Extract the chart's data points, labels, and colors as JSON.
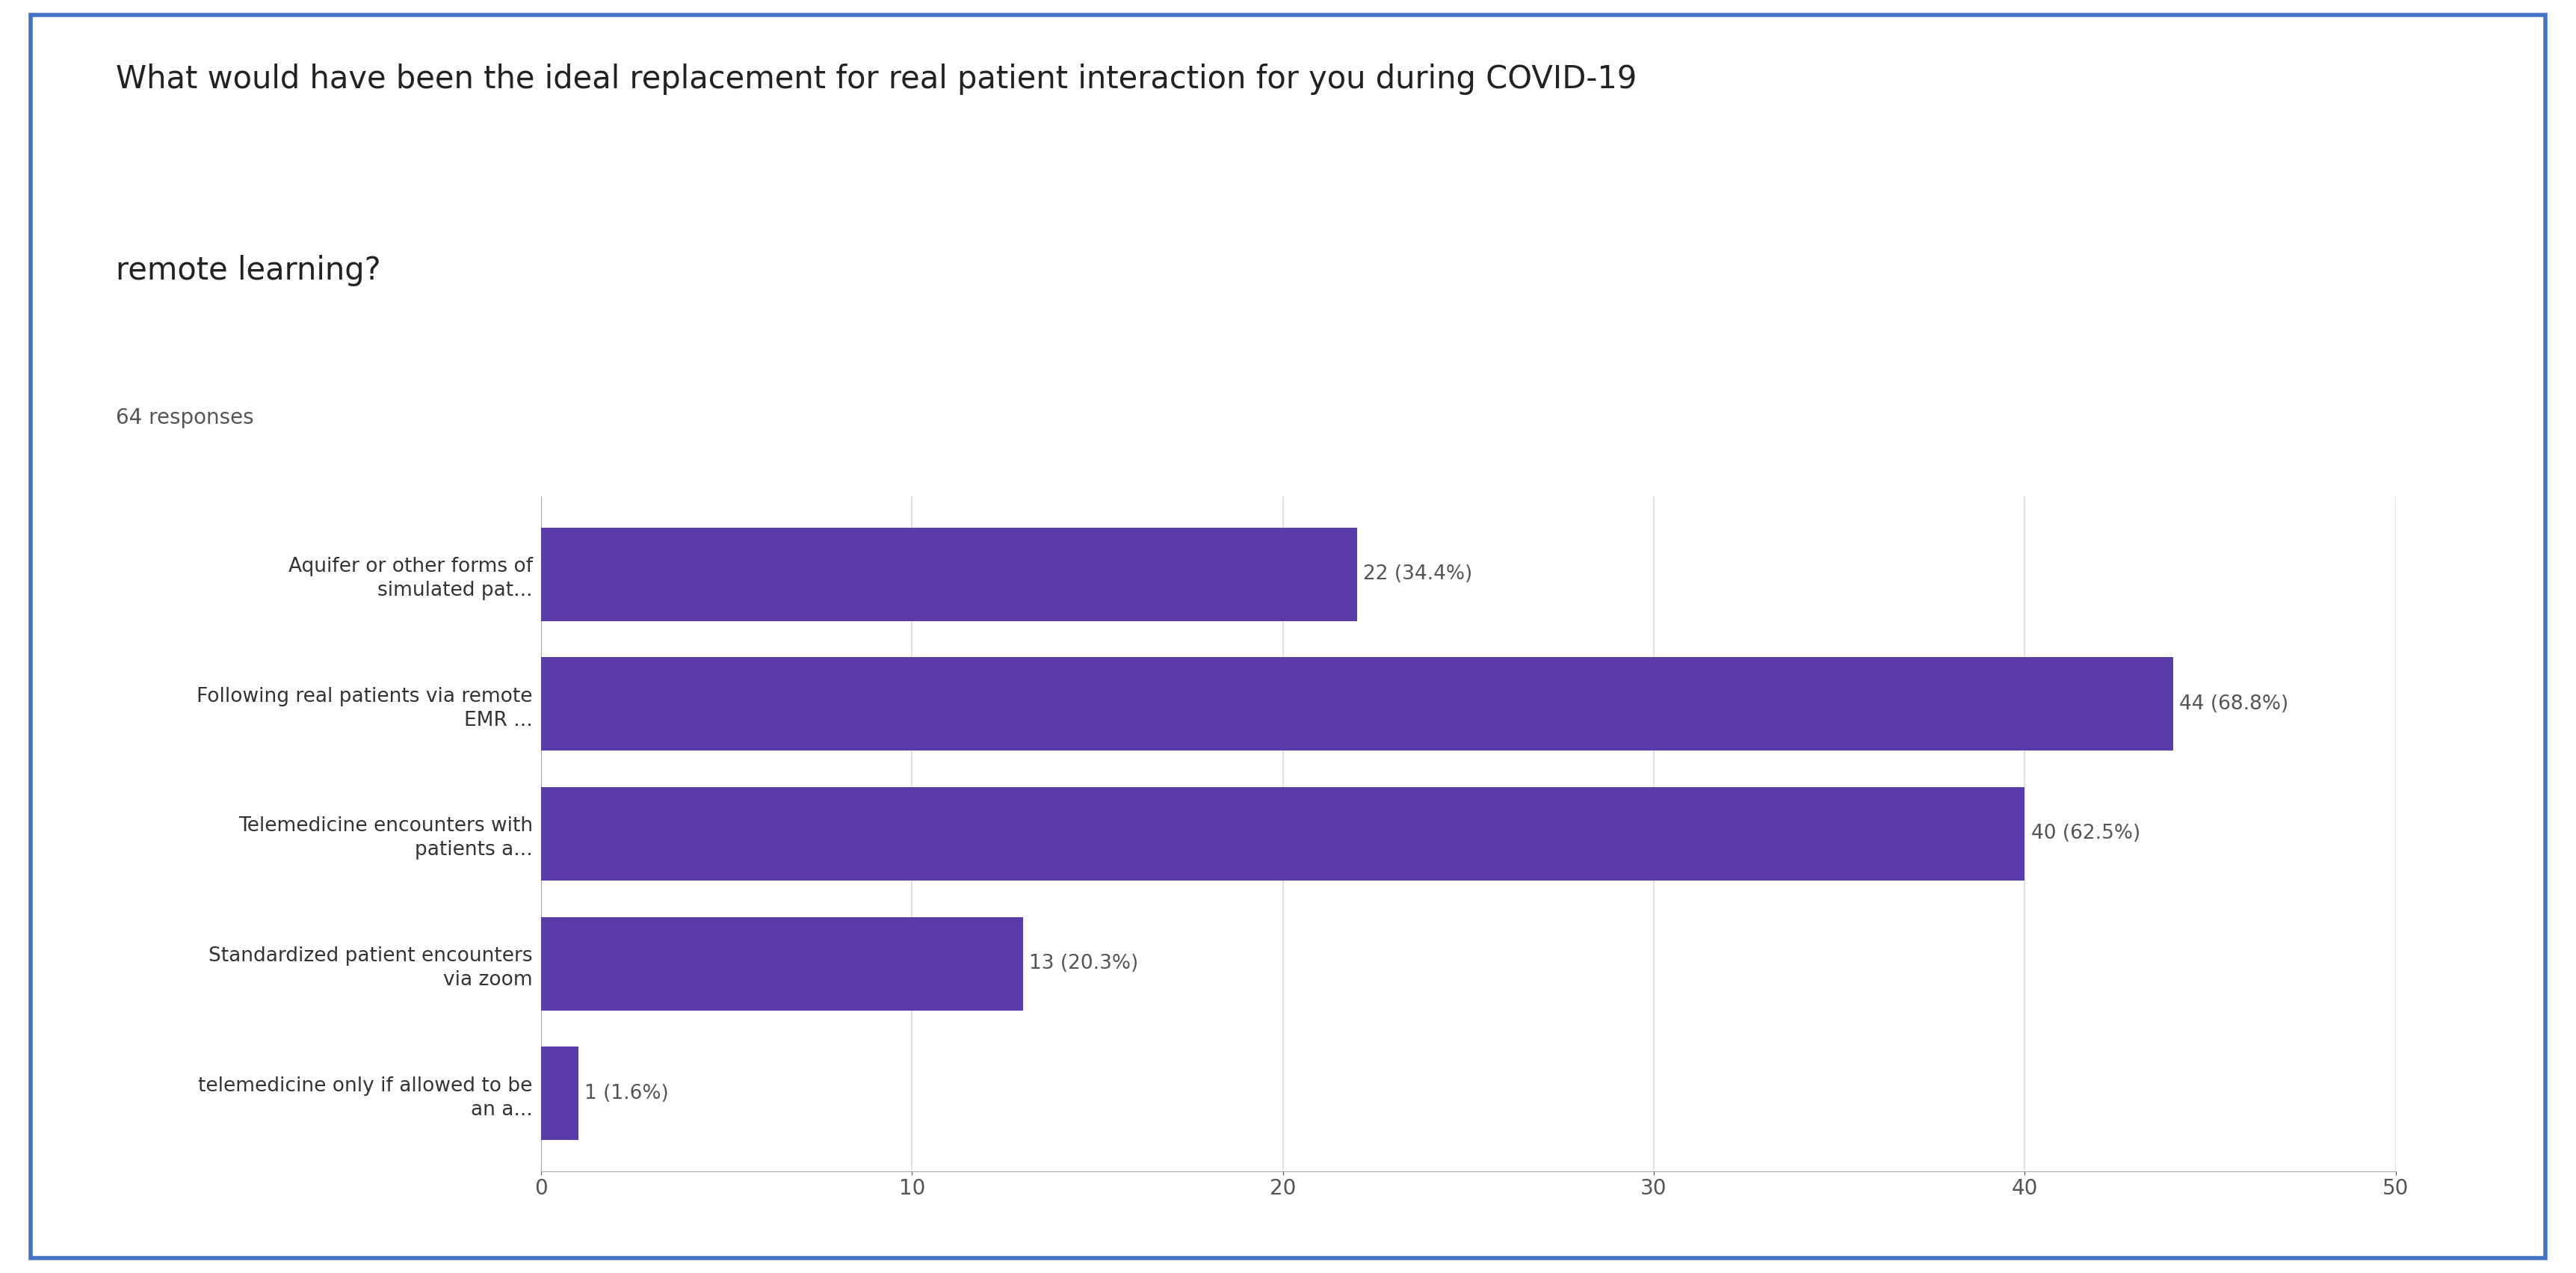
{
  "title_line1": "What would have been the ideal replacement for real patient interaction for you during COVID-19",
  "title_line2": "remote learning?",
  "subtitle": "64 responses",
  "categories": [
    "Aquifer or other forms of\nsimulated pat...",
    "Following real patients via remote\nEMR ...",
    "Telemedicine encounters with\npatients a...",
    "Standardized patient encounters\nvia zoom",
    "telemedicine only if allowed to be\nan a..."
  ],
  "values": [
    22,
    44,
    40,
    13,
    1
  ],
  "labels": [
    "22 (34.4%)",
    "44 (68.8%)",
    "40 (62.5%)",
    "13 (20.3%)",
    "1 (1.6%)"
  ],
  "bar_color": "#5b3aaa",
  "xlim": [
    0,
    50
  ],
  "xticks": [
    0,
    10,
    20,
    30,
    40,
    50
  ],
  "background_color": "#ffffff",
  "border_color": "#4472c4",
  "title_fontsize": 30,
  "subtitle_fontsize": 20,
  "label_fontsize": 19,
  "tick_fontsize": 20,
  "annot_fontsize": 19
}
